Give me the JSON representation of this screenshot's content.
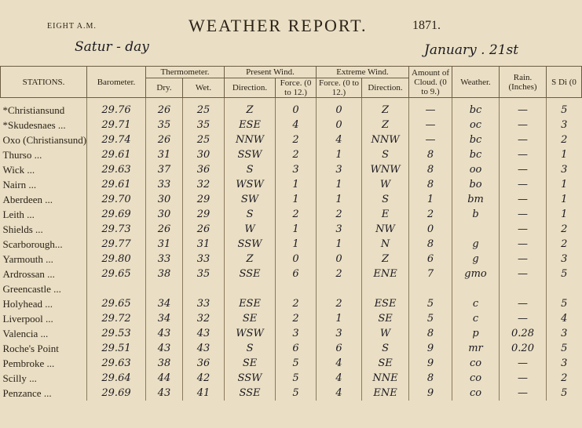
{
  "header": {
    "time": "EIGHT A.M.",
    "title": "WEATHER REPORT.",
    "year": "1871.",
    "day": "Satur - day",
    "date": "January . 21st"
  },
  "table": {
    "groups": [
      "Thermometer.",
      "Present Wind.",
      "Extreme Wind."
    ],
    "columns": [
      "STATIONS.",
      "Barometer.",
      "Dry.",
      "Wet.",
      "Direction.",
      "Force. (0 to 12.)",
      "Force. (0 to 12.)",
      "Direction.",
      "Amount of Cloud. (0 to 9.)",
      "Weather.",
      "Rain. (Inches)",
      "S Di (0"
    ],
    "rows": [
      [
        "*Christiansund",
        "29.76",
        "26",
        "25",
        "Z",
        "0",
        "0",
        "Z",
        "—",
        "bc",
        "—",
        "5"
      ],
      [
        "*Skudesnaes ...",
        "29.71",
        "35",
        "35",
        "ESE",
        "4",
        "0",
        "Z",
        "—",
        "oc",
        "—",
        "3"
      ],
      [
        "Oxo (Christiansund)",
        "29.74",
        "26",
        "25",
        "NNW",
        "2",
        "4",
        "NNW",
        "—",
        "bc",
        "—",
        "2"
      ],
      [
        "Thurso ...",
        "29.61",
        "31",
        "30",
        "SSW",
        "2",
        "1",
        "S",
        "8",
        "bc",
        "—",
        "1"
      ],
      [
        "Wick ...",
        "29.63",
        "37",
        "36",
        "S",
        "3",
        "3",
        "WNW",
        "8",
        "oo",
        "—",
        "3"
      ],
      [
        "Nairn ...",
        "29.61",
        "33",
        "32",
        "WSW",
        "1",
        "1",
        "W",
        "8",
        "bo",
        "—",
        "1"
      ],
      [
        "Aberdeen ...",
        "29.70",
        "30",
        "29",
        "SW",
        "1",
        "1",
        "S",
        "1",
        "bm",
        "—",
        "1"
      ],
      [
        "Leith ...",
        "29.69",
        "30",
        "29",
        "S",
        "2",
        "2",
        "E",
        "2",
        "b",
        "—",
        "1"
      ],
      [
        "Shields ...",
        "29.73",
        "26",
        "26",
        "W",
        "1",
        "3",
        "NW",
        "0",
        null,
        "—",
        "2"
      ],
      [
        "Scarborough...",
        "29.77",
        "31",
        "31",
        "SSW",
        "1",
        "1",
        "N",
        "8",
        "g",
        "—",
        "2"
      ],
      [
        "Yarmouth ...",
        "29.80",
        "33",
        "33",
        "Z",
        "0",
        "0",
        "Z",
        "6",
        "g",
        "—",
        "3"
      ],
      [
        "Ardrossan ...",
        "29.65",
        "38",
        "35",
        "SSE",
        "6",
        "2",
        "ENE",
        "7",
        "gmo",
        "—",
        "5"
      ],
      [
        "Greencastle ...",
        null,
        null,
        null,
        null,
        null,
        null,
        null,
        null,
        null,
        null,
        null
      ],
      [
        "Holyhead ...",
        "29.65",
        "34",
        "33",
        "ESE",
        "2",
        "2",
        "ESE",
        "5",
        "c",
        "—",
        "5"
      ],
      [
        "Liverpool ...",
        "29.72",
        "34",
        "32",
        "SE",
        "2",
        "1",
        "SE",
        "5",
        "c",
        "—",
        "4"
      ],
      [
        "Valencia ...",
        "29.53",
        "43",
        "43",
        "WSW",
        "3",
        "3",
        "W",
        "8",
        "p",
        "0.28",
        "3"
      ],
      [
        "Roche's Point",
        "29.51",
        "43",
        "43",
        "S",
        "6",
        "6",
        "S",
        "9",
        "mr",
        "0.20",
        "5"
      ],
      [
        "Pembroke ...",
        "29.63",
        "38",
        "36",
        "SE",
        "5",
        "4",
        "SE",
        "9",
        "co",
        "—",
        "3"
      ],
      [
        "Scilly ...",
        "29.64",
        "44",
        "42",
        "SSW",
        "5",
        "4",
        "NNE",
        "8",
        "co",
        "—",
        "2"
      ],
      [
        "Penzance ...",
        "29.69",
        "43",
        "41",
        "SSE",
        "5",
        "4",
        "ENE",
        "9",
        "co",
        "—",
        "5"
      ]
    ]
  }
}
